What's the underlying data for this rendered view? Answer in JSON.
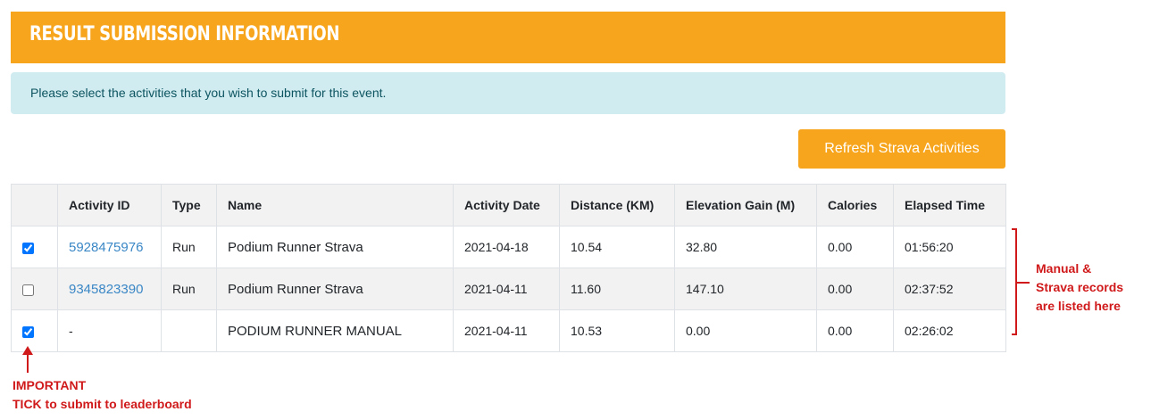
{
  "header": {
    "title": "RESULT SUBMISSION INFORMATION"
  },
  "alert": {
    "text": "Please select the activities that you wish to submit for this event."
  },
  "refresh_button": {
    "label": "Refresh Strava Activities"
  },
  "table": {
    "columns": [
      "",
      "Activity ID",
      "Type",
      "Name",
      "Activity Date",
      "Distance (KM)",
      "Elevation Gain (M)",
      "Calories",
      "Elapsed Time"
    ],
    "rows": [
      {
        "checked": true,
        "activity_id": "5928475976",
        "activity_id_link": true,
        "type": "Run",
        "name": "Podium Runner Strava",
        "date": "2021-04-18",
        "distance": "10.54",
        "elevation": "32.80",
        "calories": "0.00",
        "elapsed": "01:56:20"
      },
      {
        "checked": false,
        "activity_id": "9345823390",
        "activity_id_link": true,
        "type": "Run",
        "name": "Podium Runner Strava",
        "date": "2021-04-11",
        "distance": "11.60",
        "elevation": "147.10",
        "calories": "0.00",
        "elapsed": "02:37:52"
      },
      {
        "checked": true,
        "activity_id": "-",
        "activity_id_link": false,
        "type": "",
        "name": "PODIUM RUNNER MANUAL",
        "date": "2021-04-11",
        "distance": "10.53",
        "elevation": "0.00",
        "calories": "0.00",
        "elapsed": "02:26:02"
      }
    ]
  },
  "annotations": {
    "right": {
      "line1": "Manual &",
      "line2": "Strava records",
      "line3": "are listed here"
    },
    "bottom": {
      "line1": "IMPORTANT",
      "line2": "TICK to submit to leaderboard"
    },
    "color": "#d0191a"
  },
  "colors": {
    "accent": "#f7a51c",
    "alert_bg": "#d1ecf1",
    "alert_text": "#0c5460",
    "link": "#3a87c6"
  }
}
